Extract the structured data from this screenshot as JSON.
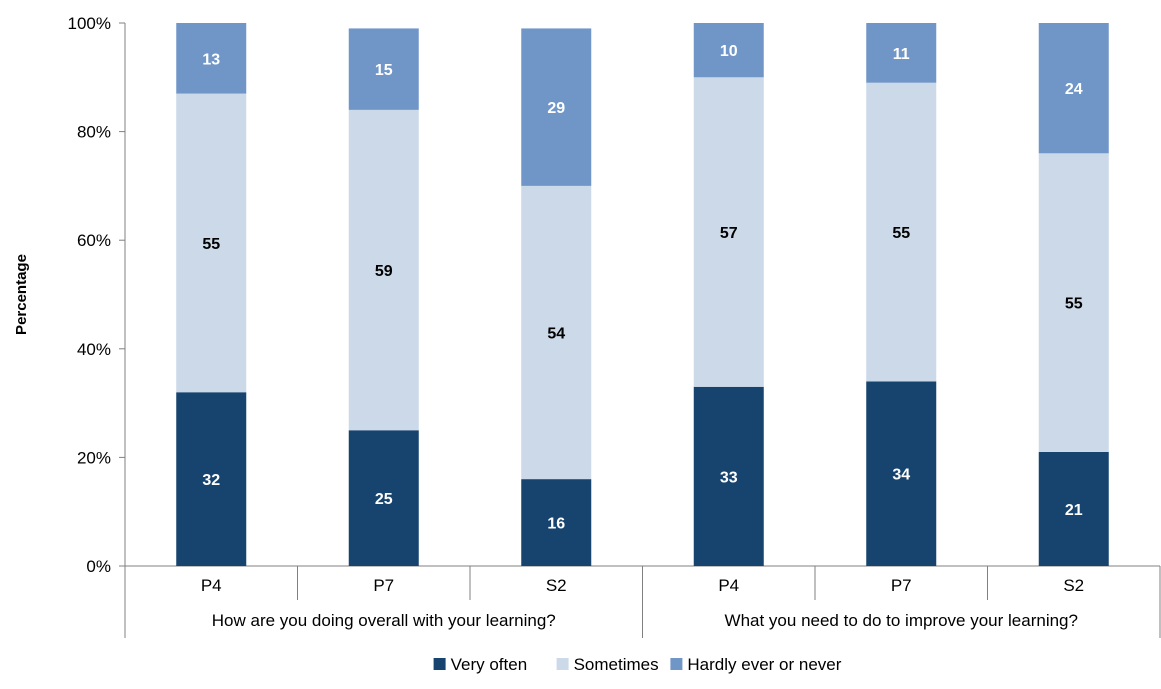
{
  "chart_data": {
    "type": "bar",
    "stacked": true,
    "title": "",
    "xlabel": "",
    "ylabel": "Percentage",
    "ylim": [
      0,
      100
    ],
    "y_ticks": [
      "0%",
      "20%",
      "40%",
      "60%",
      "80%",
      "100%"
    ],
    "grid": false,
    "legend_position": "bottom",
    "groups": [
      {
        "label": "How are you doing overall with your learning?",
        "categories": [
          "P4",
          "P7",
          "S2"
        ]
      },
      {
        "label": "What you need to do to improve your learning?",
        "categories": [
          "P4",
          "P7",
          "S2"
        ]
      }
    ],
    "categories": [
      "P4",
      "P7",
      "S2",
      "P4",
      "P7",
      "S2"
    ],
    "series": [
      {
        "name": "Very often",
        "color": "#17446f",
        "label_color": "#ffffff",
        "values": [
          32,
          25,
          16,
          33,
          34,
          21
        ]
      },
      {
        "name": "Sometimes",
        "color": "#ccd9e8",
        "label_color": "#000000",
        "values": [
          55,
          59,
          54,
          57,
          55,
          55
        ]
      },
      {
        "name": "Hardly ever or never",
        "color": "#7096c8",
        "label_color": "#ffffff",
        "values": [
          13,
          15,
          29,
          10,
          11,
          24
        ]
      }
    ]
  }
}
